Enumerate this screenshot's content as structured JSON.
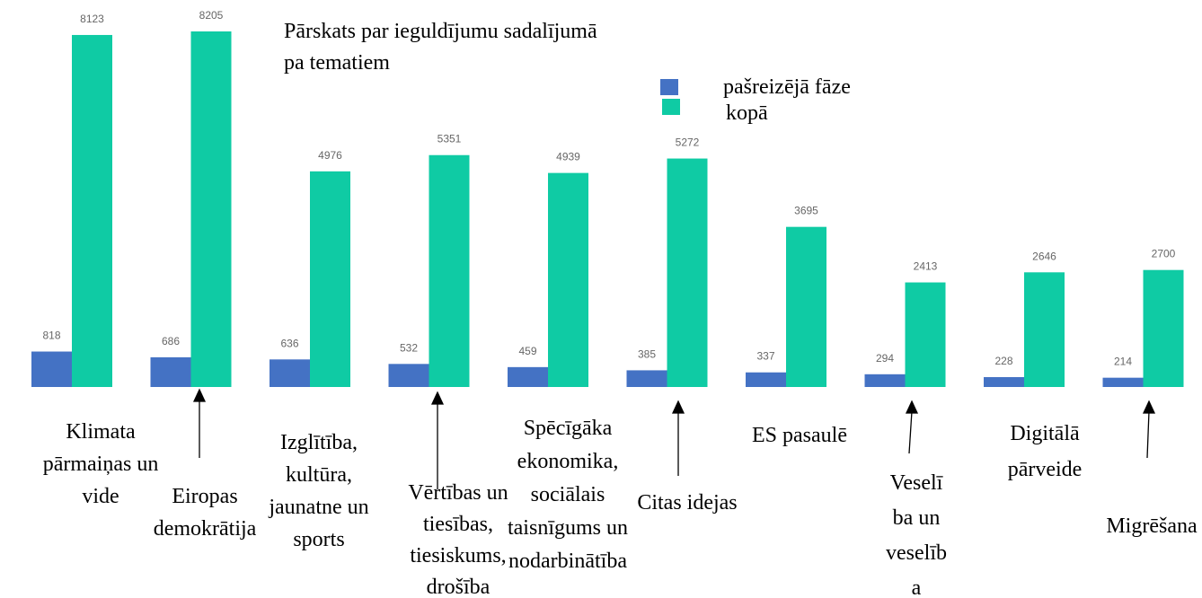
{
  "chart_data": {
    "type": "bar",
    "title": [
      "Pārskats par ieguldījumu sadalījumā",
      "pa tematiem"
    ],
    "categories": [
      [
        "Klimata",
        "pārmaiņas un",
        "vide"
      ],
      [
        "Eiropas",
        "demokrātija"
      ],
      [
        "Izglītība,",
        "kultūra,",
        "jaunatne un",
        "sports"
      ],
      [
        "Vērtības un",
        "tiesības,",
        "tiesiskums,",
        "drošība"
      ],
      [
        "Spēcīgāka",
        "ekonomika,",
        "sociālais",
        "taisnīgums un",
        "nodarbinātība"
      ],
      [
        "Citas idejas"
      ],
      [
        "ES pasaulē"
      ],
      [
        "Veselī",
        "ba un",
        "veselīb",
        "a"
      ],
      [
        "Digitālā",
        "pārveide"
      ],
      [
        "Migrēšana"
      ]
    ],
    "series": [
      {
        "name": "pašreizējā fāze",
        "color": "#4472c4",
        "values": [
          818,
          686,
          636,
          532,
          459,
          385,
          337,
          294,
          228,
          214
        ]
      },
      {
        "name": "kopā",
        "color": "#0fcba4",
        "values": [
          8123,
          8205,
          4976,
          5351,
          4939,
          5272,
          3695,
          2413,
          2646,
          2700
        ]
      }
    ],
    "grid": false
  }
}
